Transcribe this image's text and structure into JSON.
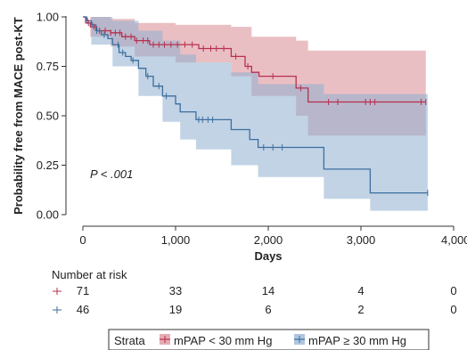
{
  "chart_data": {
    "type": "line",
    "subtype": "kaplan-meier",
    "ylabel": "Probability free from MACE post-KT",
    "xlabel": "Days",
    "xlim": [
      0,
      4000
    ],
    "ylim": [
      0,
      1
    ],
    "x_ticks": [
      0,
      1000,
      2000,
      3000,
      4000
    ],
    "x_tick_labels": [
      "0",
      "1,000",
      "2,000",
      "3,000",
      "4,000"
    ],
    "y_ticks": [
      0,
      0.25,
      0.5,
      0.75,
      1
    ],
    "y_tick_labels": [
      "0.00",
      "0.25",
      "0.50",
      "0.75",
      "1.00"
    ],
    "grid": false,
    "annotation": "P < .001",
    "legend_title": "Strata",
    "legend_placement": "bottom",
    "series": [
      {
        "name": "mPAP < 30 mm Hg",
        "color": "#b8304f",
        "band_color": "#d98a93",
        "step": [
          [
            0,
            1.0
          ],
          [
            30,
            0.97
          ],
          [
            80,
            0.95
          ],
          [
            150,
            0.93
          ],
          [
            300,
            0.92
          ],
          [
            420,
            0.9
          ],
          [
            560,
            0.88
          ],
          [
            720,
            0.86
          ],
          [
            1250,
            0.84
          ],
          [
            1600,
            0.8
          ],
          [
            1750,
            0.75
          ],
          [
            1820,
            0.72
          ],
          [
            1900,
            0.7
          ],
          [
            2300,
            0.64
          ],
          [
            2430,
            0.57
          ],
          [
            3700,
            0.57
          ]
        ],
        "ci_upper": [
          [
            0,
            1.0
          ],
          [
            80,
            1.0
          ],
          [
            300,
            0.99
          ],
          [
            560,
            0.97
          ],
          [
            1000,
            0.96
          ],
          [
            1600,
            0.95
          ],
          [
            1820,
            0.9
          ],
          [
            2300,
            0.88
          ],
          [
            2430,
            0.83
          ],
          [
            3700,
            0.83
          ]
        ],
        "ci_lower": [
          [
            0,
            1.0
          ],
          [
            80,
            0.9
          ],
          [
            300,
            0.85
          ],
          [
            560,
            0.8
          ],
          [
            1000,
            0.77
          ],
          [
            1600,
            0.7
          ],
          [
            1820,
            0.6
          ],
          [
            2300,
            0.5
          ],
          [
            2430,
            0.4
          ],
          [
            3700,
            0.4
          ]
        ],
        "censor_x": [
          60,
          120,
          180,
          240,
          300,
          350,
          400,
          460,
          520,
          580,
          650,
          700,
          760,
          820,
          880,
          950,
          1020,
          1100,
          1180,
          1300,
          1380,
          1440,
          1520,
          1650,
          1780,
          2050,
          2350,
          2650,
          2750,
          3050,
          3100,
          3150,
          3650,
          3700
        ],
        "at_risk": [
          71,
          33,
          14,
          4,
          0
        ]
      },
      {
        "name": "mPAP ≥ 30 mm Hg",
        "color": "#3d6e9e",
        "band_color": "#8eaed0",
        "step": [
          [
            0,
            1.0
          ],
          [
            40,
            0.98
          ],
          [
            90,
            0.96
          ],
          [
            140,
            0.93
          ],
          [
            200,
            0.91
          ],
          [
            270,
            0.89
          ],
          [
            320,
            0.86
          ],
          [
            390,
            0.82
          ],
          [
            460,
            0.8
          ],
          [
            520,
            0.78
          ],
          [
            600,
            0.74
          ],
          [
            680,
            0.7
          ],
          [
            760,
            0.65
          ],
          [
            860,
            0.6
          ],
          [
            1000,
            0.56
          ],
          [
            1050,
            0.52
          ],
          [
            1220,
            0.48
          ],
          [
            1600,
            0.43
          ],
          [
            1800,
            0.38
          ],
          [
            1890,
            0.34
          ],
          [
            2600,
            0.23
          ],
          [
            3100,
            0.11
          ],
          [
            3720,
            0.11
          ]
        ],
        "ci_upper": [
          [
            0,
            1.0
          ],
          [
            90,
            1.0
          ],
          [
            320,
            0.98
          ],
          [
            600,
            0.93
          ],
          [
            860,
            0.88
          ],
          [
            1050,
            0.81
          ],
          [
            1220,
            0.77
          ],
          [
            1600,
            0.72
          ],
          [
            1890,
            0.66
          ],
          [
            2600,
            0.61
          ],
          [
            3100,
            0.61
          ],
          [
            3720,
            0.61
          ]
        ],
        "ci_lower": [
          [
            0,
            1.0
          ],
          [
            90,
            0.86
          ],
          [
            320,
            0.75
          ],
          [
            600,
            0.6
          ],
          [
            860,
            0.47
          ],
          [
            1050,
            0.38
          ],
          [
            1220,
            0.33
          ],
          [
            1600,
            0.25
          ],
          [
            1890,
            0.19
          ],
          [
            2600,
            0.08
          ],
          [
            3100,
            0.02
          ],
          [
            3720,
            0.02
          ]
        ],
        "censor_x": [
          50,
          100,
          150,
          230,
          380,
          430,
          540,
          700,
          820,
          900,
          1250,
          1290,
          1350,
          1400,
          1950,
          2050,
          2150,
          3720
        ],
        "at_risk": [
          46,
          19,
          6,
          2,
          0
        ]
      }
    ],
    "risk_table": {
      "title": "Number at risk"
    }
  }
}
